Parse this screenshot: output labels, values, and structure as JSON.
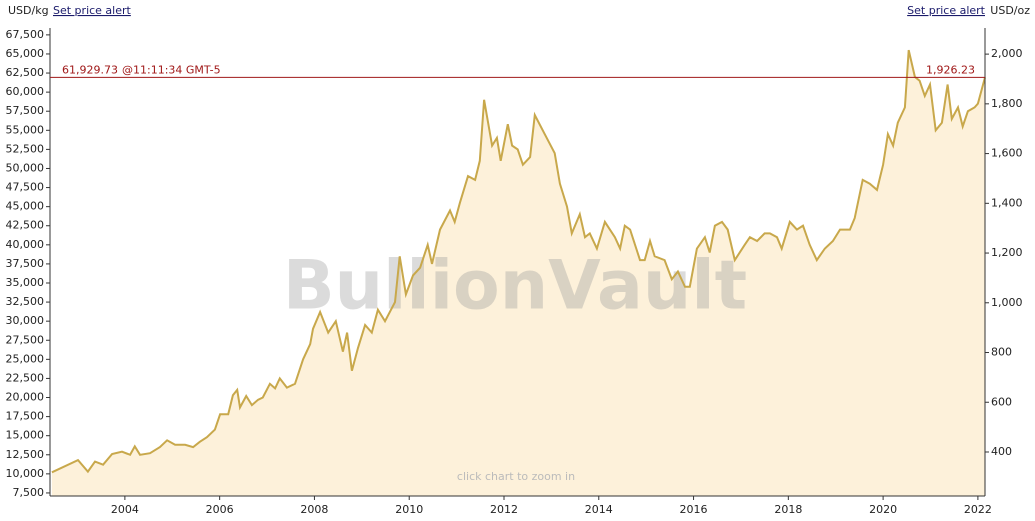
{
  "chart_data": {
    "type": "line",
    "left_unit": "USD/kg",
    "right_unit": "USD/oz",
    "left_link": "Set price alert",
    "right_link": "Set price alert",
    "watermark": "BullionVault",
    "hint": "click chart to zoom in",
    "current_price": {
      "usd_kg": 61929.73,
      "usd_kg_label": "61,929.73",
      "time": "@11:11:34 GMT-5",
      "usd_oz": 1926.23,
      "usd_oz_label": "1,926.23",
      "color": "#a01818"
    },
    "x": [
      2002.46,
      2003.01,
      2003.22,
      2003.37,
      2003.54,
      2003.73,
      2003.94,
      2004.11,
      2004.21,
      2004.32,
      2004.53,
      2004.74,
      2004.89,
      2005.06,
      2005.27,
      2005.44,
      2005.58,
      2005.73,
      2005.9,
      2006.01,
      2006.18,
      2006.28,
      2006.37,
      2006.43,
      2006.56,
      2006.68,
      2006.81,
      2006.91,
      2007.06,
      2007.17,
      2007.27,
      2007.42,
      2007.59,
      2007.76,
      2007.91,
      2007.97,
      2008.12,
      2008.29,
      2008.45,
      2008.6,
      2008.69,
      2008.79,
      2008.92,
      2009.07,
      2009.21,
      2009.34,
      2009.49,
      2009.7,
      2009.8,
      2009.93,
      2010.08,
      2010.23,
      2010.39,
      2010.48,
      2010.65,
      2010.86,
      2010.96,
      2011.07,
      2011.24,
      2011.39,
      2011.49,
      2011.58,
      2011.75,
      2011.85,
      2011.93,
      2012.08,
      2012.17,
      2012.29,
      2012.4,
      2012.55,
      2012.65,
      2012.86,
      2013.07,
      2013.18,
      2013.33,
      2013.43,
      2013.6,
      2013.71,
      2013.81,
      2013.96,
      2014.13,
      2014.34,
      2014.45,
      2014.55,
      2014.66,
      2014.87,
      2014.97,
      2015.08,
      2015.18,
      2015.39,
      2015.54,
      2015.67,
      2015.82,
      2015.92,
      2016.07,
      2016.24,
      2016.34,
      2016.45,
      2016.6,
      2016.72,
      2016.87,
      2017.08,
      2017.19,
      2017.34,
      2017.5,
      2017.61,
      2017.76,
      2017.86,
      2018.03,
      2018.18,
      2018.31,
      2018.45,
      2018.6,
      2018.77,
      2018.94,
      2019.09,
      2019.3,
      2019.4,
      2019.57,
      2019.72,
      2019.87,
      2020.0,
      2020.1,
      2020.21,
      2020.31,
      2020.46,
      2020.54,
      2020.67,
      2020.77,
      2020.88,
      2020.99,
      2021.11,
      2021.24,
      2021.36,
      2021.45,
      2021.58,
      2021.68,
      2021.79,
      2021.93,
      2022.0,
      2022.15
    ],
    "series": [
      {
        "color": "#c8a84b",
        "fill": "#fdf1da",
        "values": [
          10200,
          11800,
          10300,
          11600,
          11200,
          12600,
          12900,
          12500,
          13600,
          12500,
          12700,
          13500,
          14400,
          13800,
          13800,
          13500,
          14200,
          14800,
          15800,
          17800,
          17800,
          20300,
          21000,
          18700,
          20200,
          19000,
          19700,
          20000,
          21800,
          21200,
          22500,
          21300,
          21800,
          25000,
          27000,
          29000,
          31200,
          28500,
          30000,
          26000,
          28500,
          23500,
          26500,
          29500,
          28500,
          31500,
          30000,
          32500,
          38500,
          33500,
          36000,
          37000,
          40000,
          37500,
          42000,
          44500,
          43000,
          45500,
          49000,
          48500,
          51000,
          59000,
          53000,
          54000,
          51000,
          55800,
          53000,
          52500,
          50500,
          51500,
          57000,
          54500,
          52000,
          48000,
          45000,
          41500,
          44000,
          41000,
          41500,
          39500,
          43000,
          41000,
          39500,
          42500,
          42000,
          38000,
          38000,
          40500,
          38500,
          38000,
          35500,
          36500,
          34500,
          34500,
          39500,
          41000,
          39000,
          42500,
          43000,
          42000,
          38000,
          40000,
          41000,
          40500,
          41500,
          41500,
          41000,
          39500,
          43000,
          42000,
          42500,
          40000,
          38000,
          39500,
          40500,
          42000,
          42000,
          43500,
          48500,
          48000,
          47200,
          50500,
          54500,
          53000,
          56000,
          58000,
          65500,
          62000,
          61500,
          59500,
          61000,
          55000,
          56000,
          61000,
          56500,
          58000,
          55500,
          57500,
          58000,
          58500,
          61929.73
        ]
      }
    ],
    "xlim": [
      2002.42,
      2022.15
    ],
    "xticks": [
      2004,
      2006,
      2008,
      2010,
      2012,
      2014,
      2016,
      2018,
      2020,
      2022
    ],
    "ylim": [
      7100,
      68400
    ],
    "yticks": [
      {
        "value": 7500,
        "label": "7,500"
      },
      {
        "value": 10000,
        "label": "10,000"
      },
      {
        "value": 12500,
        "label": "12,500"
      },
      {
        "value": 15000,
        "label": "15,000"
      },
      {
        "value": 17500,
        "label": "17,500"
      },
      {
        "value": 20000,
        "label": "20,000"
      },
      {
        "value": 22500,
        "label": "22,500"
      },
      {
        "value": 25000,
        "label": "25,000"
      },
      {
        "value": 27500,
        "label": "27,500"
      },
      {
        "value": 30000,
        "label": "30,000"
      },
      {
        "value": 32500,
        "label": "32,500"
      },
      {
        "value": 35000,
        "label": "35,000"
      },
      {
        "value": 37500,
        "label": "37,500"
      },
      {
        "value": 40000,
        "label": "40,000"
      },
      {
        "value": 42500,
        "label": "42,500"
      },
      {
        "value": 45000,
        "label": "45,000"
      },
      {
        "value": 47500,
        "label": "47,500"
      },
      {
        "value": 50000,
        "label": "50,000"
      },
      {
        "value": 52500,
        "label": "52,500"
      },
      {
        "value": 55000,
        "label": "55,000"
      },
      {
        "value": 57500,
        "label": "57,500"
      },
      {
        "value": 60000,
        "label": "60,000"
      },
      {
        "value": 62500,
        "label": "62,500"
      },
      {
        "value": 65000,
        "label": "65,000"
      },
      {
        "value": 67500,
        "label": "67,500"
      }
    ],
    "y2lim": [
      223,
      2105
    ],
    "y2ticks": [
      400,
      600,
      800,
      {
        "value": 1000,
        "label": "1,000"
      },
      {
        "value": 1200,
        "label": "1,200"
      },
      {
        "value": 1400,
        "label": "1,400"
      },
      {
        "value": 1600,
        "label": "1,600"
      },
      {
        "value": 1800,
        "label": "1,800"
      },
      {
        "value": 2000,
        "label": "2,000"
      }
    ]
  }
}
